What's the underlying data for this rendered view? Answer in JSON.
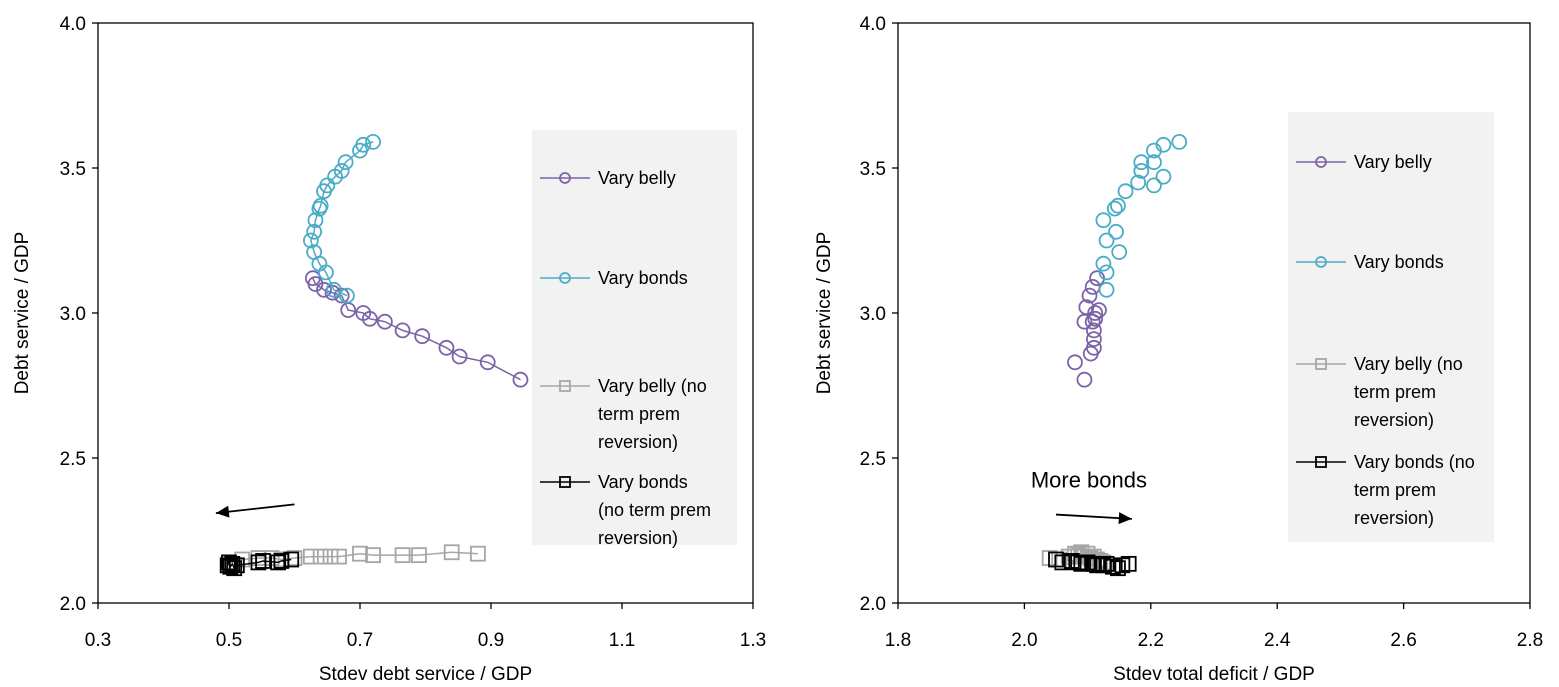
{
  "chart_data": [
    {
      "type": "line",
      "title": "",
      "xlabel": "Stdev debt service / GDP",
      "ylabel": "Debt service / GDP",
      "xlim": [
        0.3,
        1.3
      ],
      "ylim": [
        2.0,
        4.0
      ],
      "xticks": [
        "0.3",
        "0.5",
        "0.7",
        "0.9",
        "1.1",
        "1.3"
      ],
      "yticks": [
        "2.0",
        "2.5",
        "3.0",
        "3.5",
        "4.0"
      ],
      "grid": false,
      "legend_placement": "right",
      "annotation": {
        "text": "",
        "arrow": {
          "x1": 0.6,
          "y1": 2.34,
          "x2": 0.48,
          "y2": 2.31
        }
      },
      "series": [
        {
          "name": "Vary belly",
          "color": "#7b63a8",
          "marker": "circle",
          "x": [
            0.628,
            0.632,
            0.645,
            0.658,
            0.672,
            0.682,
            0.705,
            0.715,
            0.738,
            0.765,
            0.795,
            0.832,
            0.852,
            0.895,
            0.945
          ],
          "y": [
            3.12,
            3.1,
            3.08,
            3.07,
            3.06,
            3.01,
            3.0,
            2.98,
            2.97,
            2.94,
            2.92,
            2.88,
            2.85,
            2.83,
            2.77
          ]
        },
        {
          "name": "Vary bonds",
          "color": "#4bacc6",
          "marker": "circle",
          "x": [
            0.72,
            0.705,
            0.7,
            0.678,
            0.672,
            0.662,
            0.65,
            0.645,
            0.64,
            0.638,
            0.632,
            0.63,
            0.625,
            0.63,
            0.638,
            0.648,
            0.66,
            0.68
          ],
          "y": [
            3.59,
            3.58,
            3.56,
            3.52,
            3.49,
            3.47,
            3.44,
            3.42,
            3.37,
            3.36,
            3.32,
            3.28,
            3.25,
            3.21,
            3.17,
            3.14,
            3.08,
            3.06
          ]
        },
        {
          "name": "Vary belly (no term prem reversion)",
          "color": "#a6a6a6",
          "marker": "square",
          "x": [
            0.5,
            0.52,
            0.545,
            0.565,
            0.58,
            0.6,
            0.625,
            0.64,
            0.655,
            0.668,
            0.7,
            0.72,
            0.765,
            0.79,
            0.84,
            0.88
          ],
          "y": [
            2.14,
            2.15,
            2.155,
            2.155,
            2.15,
            2.155,
            2.16,
            2.16,
            2.16,
            2.16,
            2.17,
            2.165,
            2.165,
            2.165,
            2.175,
            2.17
          ]
        },
        {
          "name": "Vary bonds (no term prem reversion)",
          "color": "#000000",
          "marker": "square",
          "x": [
            0.498,
            0.5,
            0.502,
            0.505,
            0.508,
            0.512,
            0.545,
            0.552,
            0.575,
            0.58,
            0.595
          ],
          "y": [
            2.13,
            2.14,
            2.125,
            2.135,
            2.12,
            2.13,
            2.14,
            2.145,
            2.14,
            2.145,
            2.15
          ]
        }
      ]
    },
    {
      "type": "scatter",
      "title": "",
      "xlabel": "Stdev total deficit / GDP",
      "ylabel": "Debt service / GDP",
      "xlim": [
        1.8,
        2.8
      ],
      "ylim": [
        2.0,
        4.0
      ],
      "xticks": [
        "1.8",
        "2.0",
        "2.2",
        "2.4",
        "2.6",
        "2.8"
      ],
      "yticks": [
        "2.0",
        "2.5",
        "3.0",
        "3.5",
        "4.0"
      ],
      "grid": false,
      "legend_placement": "right",
      "annotation": {
        "text": "More bonds",
        "arrow": {
          "x1": 2.05,
          "y1": 2.305,
          "x2": 2.17,
          "y2": 2.29
        }
      },
      "series": [
        {
          "name": "Vary belly",
          "color": "#7b63a8",
          "marker": "circle",
          "x": [
            2.095,
            2.08,
            2.105,
            2.11,
            2.11,
            2.11,
            2.108,
            2.112,
            2.112,
            2.118,
            2.095,
            2.098,
            2.103,
            2.108,
            2.115
          ],
          "y": [
            2.77,
            2.83,
            2.86,
            2.88,
            2.91,
            2.94,
            2.97,
            2.98,
            3.0,
            3.01,
            2.97,
            3.02,
            3.06,
            3.09,
            3.12
          ]
        },
        {
          "name": "Vary bonds",
          "color": "#4bacc6",
          "marker": "circle",
          "x": [
            2.245,
            2.22,
            2.205,
            2.205,
            2.185,
            2.185,
            2.22,
            2.205,
            2.18,
            2.16,
            2.148,
            2.143,
            2.125,
            2.145,
            2.15,
            2.13,
            2.125,
            2.13,
            2.13
          ],
          "y": [
            3.59,
            3.58,
            3.56,
            3.52,
            3.52,
            3.49,
            3.47,
            3.44,
            3.45,
            3.42,
            3.37,
            3.36,
            3.32,
            3.28,
            3.21,
            3.25,
            3.17,
            3.14,
            3.08
          ]
        },
        {
          "name": "Vary belly (no term prem reversion)",
          "color": "#a6a6a6",
          "marker": "square",
          "x": [
            2.04,
            2.055,
            2.07,
            2.08,
            2.085,
            2.09,
            2.095,
            2.1,
            2.105,
            2.11,
            2.115,
            2.12,
            2.125,
            2.13
          ],
          "y": [
            2.155,
            2.15,
            2.16,
            2.17,
            2.165,
            2.175,
            2.16,
            2.17,
            2.155,
            2.16,
            2.15,
            2.145,
            2.14,
            2.135
          ]
        },
        {
          "name": "Vary bonds (no term prem reversion)",
          "color": "#000000",
          "marker": "square",
          "x": [
            2.05,
            2.06,
            2.075,
            2.085,
            2.09,
            2.1,
            2.11,
            2.115,
            2.125,
            2.13,
            2.14,
            2.148,
            2.155,
            2.165
          ],
          "y": [
            2.15,
            2.14,
            2.145,
            2.14,
            2.135,
            2.14,
            2.135,
            2.13,
            2.13,
            2.135,
            2.125,
            2.12,
            2.13,
            2.135
          ]
        }
      ]
    }
  ],
  "legend_lines": [
    [
      "Vary belly"
    ],
    [
      "Vary bonds"
    ],
    [
      "Vary belly (no",
      "term prem",
      "reversion)"
    ],
    [
      "Vary bonds",
      "(no term prem",
      "reversion)"
    ]
  ],
  "legend_lines_right": [
    [
      "Vary belly"
    ],
    [
      "Vary bonds"
    ],
    [
      "Vary belly (no",
      "term prem",
      "reversion)"
    ],
    [
      "Vary bonds (no",
      "term prem",
      "reversion)"
    ]
  ]
}
